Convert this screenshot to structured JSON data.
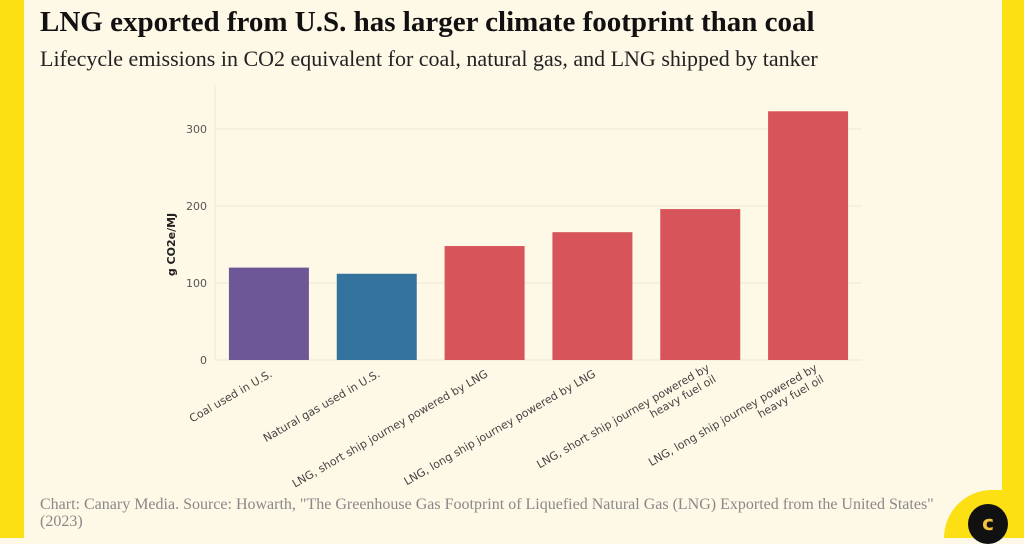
{
  "title": "LNG exported from U.S. has larger climate footprint than coal",
  "subtitle": "Lifecycle emissions in CO2 equivalent for coal, natural gas, and LNG shipped by tanker",
  "source": "Chart: Canary Media. Source: Howarth, \"The Greenhouse Gas Footprint of Liquefied Natural Gas (LNG) Exported from the United States\" (2023)",
  "logo_letter": "c",
  "colors": {
    "frame": "#fde014",
    "background": "#fef8e6",
    "coal": "#6e5796",
    "gas": "#35739f",
    "lng": "#d6545a"
  },
  "chart_data": {
    "type": "bar",
    "title": "LNG exported from U.S. has larger climate footprint than coal",
    "xlabel": "",
    "ylabel": "g CO2e/MJ",
    "ylim": [
      0,
      330
    ],
    "yticks": [
      0,
      100,
      200,
      300
    ],
    "grid": true,
    "categories": [
      [
        "Coal used in U.S."
      ],
      [
        "Natural gas used in U.S."
      ],
      [
        "LNG, short ship journey powered by LNG"
      ],
      [
        "LNG, long ship journey powered by LNG"
      ],
      [
        "LNG, short ship journey powered by",
        "heavy fuel oil"
      ],
      [
        "LNG, long ship journey powered by",
        "heavy fuel oil"
      ]
    ],
    "values": [
      120,
      112,
      148,
      166,
      196,
      323
    ],
    "bar_colors": [
      "#6e5796",
      "#35739f",
      "#d6545a",
      "#d6545a",
      "#d6545a",
      "#d6545a"
    ]
  }
}
